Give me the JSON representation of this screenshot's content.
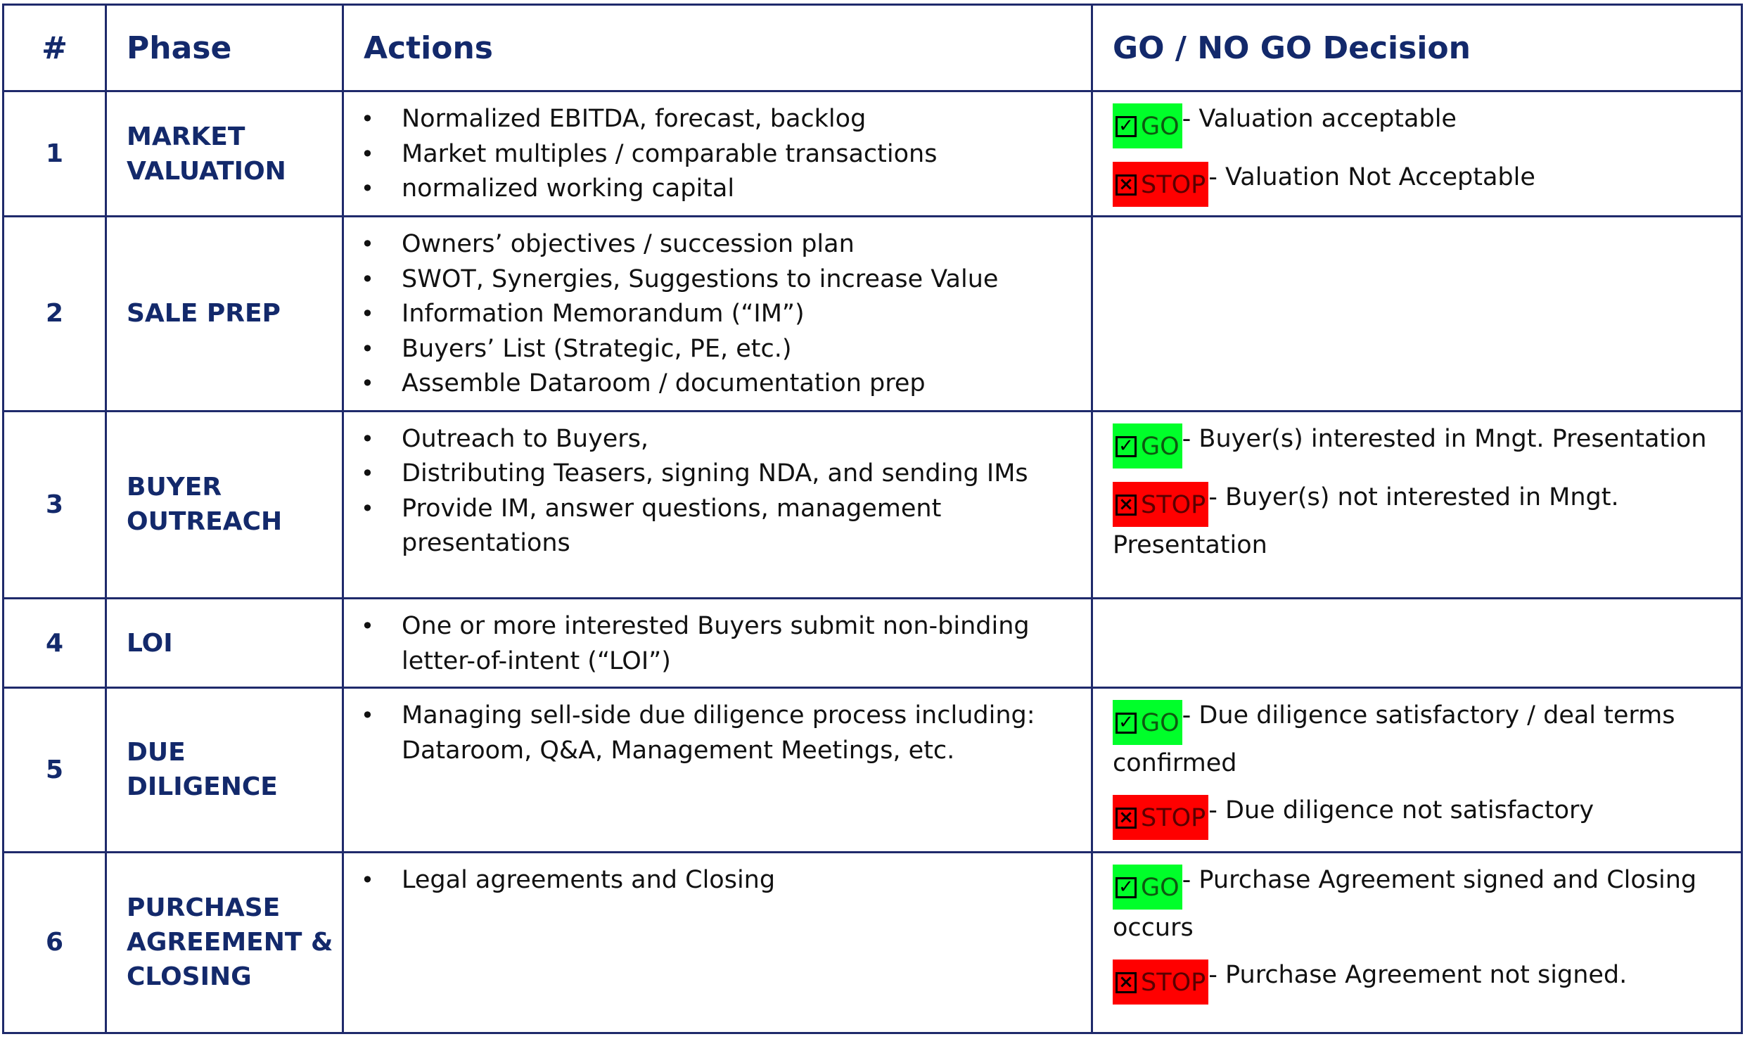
{
  "header": {
    "num": "#",
    "phase": "Phase",
    "actions": "Actions",
    "decision": "GO / NO GO Decision"
  },
  "rows": [
    {
      "num": "1",
      "phase_lines": [
        "MARKET",
        "VALUATION"
      ],
      "actions": [
        "Normalized EBITDA, forecast, backlog",
        "Market multiples / comparable transactions",
        "normalized working capital"
      ],
      "go_label": "GO",
      "go_text": "-  Valuation acceptable",
      "stop_label": "STOP",
      "stop_text": "- Valuation Not Acceptable"
    },
    {
      "num": "2",
      "phase_lines": [
        "SALE PREP"
      ],
      "actions": [
        "Owners’ objectives / succession plan",
        "SWOT, Synergies, Suggestions to increase Value",
        "Information Memorandum (“IM”)",
        "Buyers’ List  (Strategic, PE, etc.)",
        "Assemble Dataroom / documentation prep"
      ]
    },
    {
      "num": "3",
      "phase_lines": [
        "BUYER",
        "OUTREACH"
      ],
      "actions": [
        "Outreach to Buyers,",
        "Distributing Teasers, signing NDA, and sending IMs",
        "Provide IM, answer questions, management presentations"
      ],
      "go_label": "GO",
      "go_text": "-  Buyer(s) interested in Mngt. Presentation",
      "stop_label": "STOP",
      "stop_text": "- Buyer(s) not interested in Mngt. Presentation"
    },
    {
      "num": "4",
      "phase_lines": [
        "LOI"
      ],
      "actions": [
        "One or more interested Buyers submit non-binding letter-of-intent (“LOI”)"
      ]
    },
    {
      "num": "5",
      "phase_lines": [
        "DUE",
        "DILIGENCE"
      ],
      "actions": [
        "Managing sell-side due diligence process including: Dataroom, Q&A, Management Meetings, etc."
      ],
      "go_label": "GO",
      "go_text": "-  Due diligence satisfactory / deal terms confirmed",
      "stop_label": "STOP",
      "stop_text": "- Due diligence not satisfactory"
    },
    {
      "num": "6",
      "phase_lines": [
        "PURCHASE",
        "AGREEMENT &",
        "CLOSING"
      ],
      "actions": [
        "Legal agreements and Closing"
      ],
      "go_label": "GO",
      "go_text": "-  Purchase Agreement signed and Closing occurs",
      "stop_label": "STOP",
      "stop_text": "- Purchase Agreement not signed."
    }
  ],
  "icons": {
    "go": "checkbox-checked-icon",
    "stop": "checkbox-x-icon"
  },
  "colors": {
    "header_text": "#13296b",
    "border": "#1f2a6b",
    "go_bg": "#00ff2a",
    "stop_bg": "#ff0000"
  }
}
